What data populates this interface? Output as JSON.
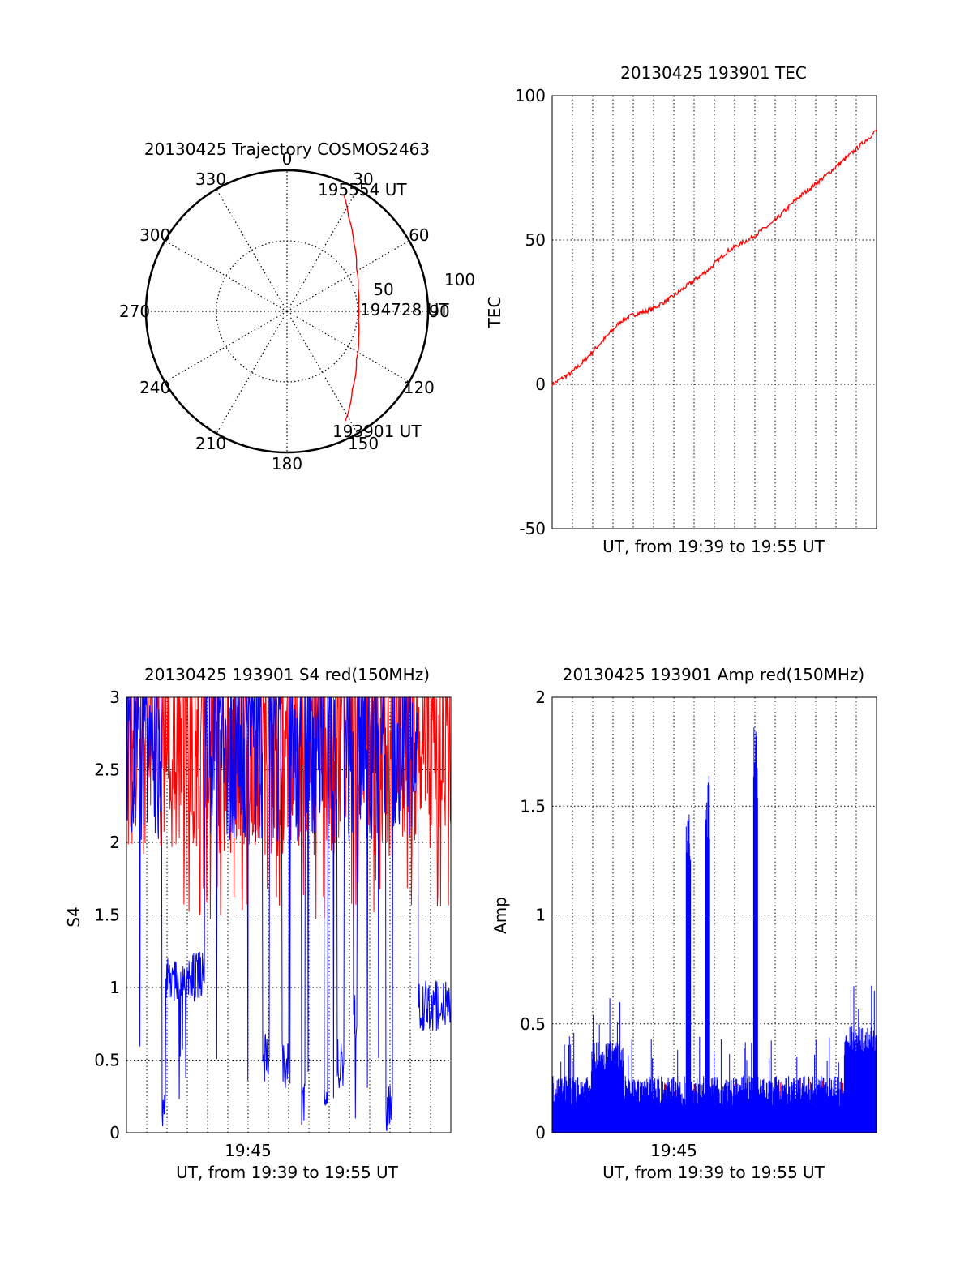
{
  "colors": {
    "red": "#ff0000",
    "blue": "#0000ff",
    "axis": "#000000",
    "grid": "#000000"
  },
  "chart_data": [
    {
      "type": "polar",
      "title": "20130425 Trajectory COSMOS2463",
      "angle_ticks": [
        "0",
        "30",
        "60",
        "90",
        "120",
        "150",
        "180",
        "210",
        "240",
        "270",
        "300",
        "330"
      ],
      "radial_ticks": [
        "50",
        "100"
      ],
      "start_label": "193901 UT",
      "mid_label": "194728 UT",
      "end_label": "195554 UT",
      "series": [
        {
          "color": "red",
          "azimuth_deg": [
            152,
            140,
            125,
            110,
            97,
            85,
            72,
            58,
            44,
            33,
            26
          ],
          "zenith_deg": [
            88,
            72,
            60,
            54,
            51,
            51,
            53,
            58,
            68,
            80,
            92
          ]
        }
      ]
    },
    {
      "type": "line",
      "title": "20130425 193901 TEC",
      "xlabel": "UT, from 19:39 to 19:55 UT",
      "ylabel": "TEC",
      "ylim": [
        -50,
        100
      ],
      "yticks": [
        "100",
        "50",
        "0",
        "-50"
      ],
      "xlim_min": [
        0,
        16.9
      ],
      "x": [
        0,
        1,
        1.5,
        2.2,
        2.9,
        3.6,
        4.2,
        5.2,
        6.2,
        7.2,
        8.2,
        9.1,
        10.2,
        11.5,
        12.7,
        14.2,
        15.6,
        16.9
      ],
      "series": [
        {
          "color": "red",
          "values": [
            0,
            4,
            7,
            12,
            17,
            22,
            24,
            26,
            30,
            35,
            40,
            46,
            50,
            56,
            64,
            72,
            80,
            88
          ]
        }
      ]
    },
    {
      "type": "line",
      "title": "20130425 193901 S4 red(150MHz)",
      "xlabel": "UT, from 19:39 to 19:55 UT",
      "ylabel": "S4",
      "ylim": [
        0,
        3
      ],
      "yticks": [
        "3",
        "2.5",
        "2",
        "1.5",
        "1",
        "0.5",
        "0"
      ],
      "xticks": [
        "19:45"
      ],
      "series": [
        {
          "color": "red",
          "name": "",
          "band": [
            1.7,
            3.0
          ]
        },
        {
          "color": "blue",
          "name": "",
          "band": [
            0,
            3.0
          ]
        }
      ]
    },
    {
      "type": "line",
      "title": "20130425 193901 Amp red(150MHz)",
      "xlabel": "UT, from 19:39 to 19:55 UT",
      "ylabel": "Amp",
      "ylim": [
        0,
        2
      ],
      "yticks": [
        "2",
        "1.5",
        "1",
        "0.5",
        "0"
      ],
      "xticks": [
        "19:45"
      ],
      "peaks": [
        {
          "x_min": 7.1,
          "value": 1.49
        },
        {
          "x_min": 8.1,
          "value": 1.64
        },
        {
          "x_min": 10.6,
          "value": 1.92
        }
      ]
    }
  ]
}
